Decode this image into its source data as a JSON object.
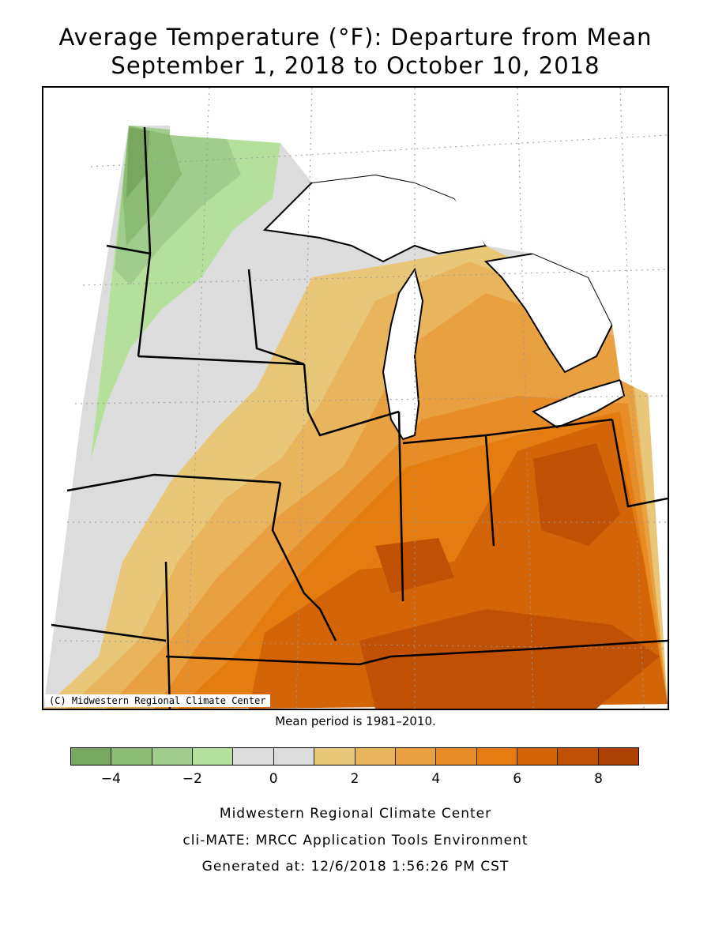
{
  "title": {
    "line1": "Average Temperature (°F): Departure from Mean",
    "line2": "September 1, 2018 to October 10, 2018"
  },
  "map": {
    "copyright": "(C) Midwestern Regional Climate Center",
    "mean_note": "Mean period is 1981–2010.",
    "regions": [
      "Minnesota",
      "Wisconsin",
      "Iowa",
      "Illinois",
      "Indiana",
      "Ohio",
      "Michigan",
      "Missouri",
      "Kentucky"
    ]
  },
  "legend": {
    "colors": [
      "#78a860",
      "#8cbc74",
      "#a0cc8c",
      "#b4e09c",
      "#dcdcdc",
      "#dcdcdc",
      "#e8c878",
      "#e8b45c",
      "#e8a040",
      "#e88c28",
      "#e47c10",
      "#d46408",
      "#c05004",
      "#ac4004"
    ],
    "ticks": [
      {
        "value": -4,
        "label": "−4"
      },
      {
        "value": -2,
        "label": "−2"
      },
      {
        "value": 0,
        "label": "0"
      },
      {
        "value": 2,
        "label": "2"
      },
      {
        "value": 4,
        "label": "4"
      },
      {
        "value": 6,
        "label": "6"
      },
      {
        "value": 8,
        "label": "8"
      }
    ],
    "min": -5,
    "max": 9
  },
  "credits": {
    "line1": "Midwestern Regional Climate Center",
    "line2": "cli-MATE: MRCC Application Tools Environment",
    "line3": "Generated at: 12/6/2018 1:56:26 PM CST"
  }
}
